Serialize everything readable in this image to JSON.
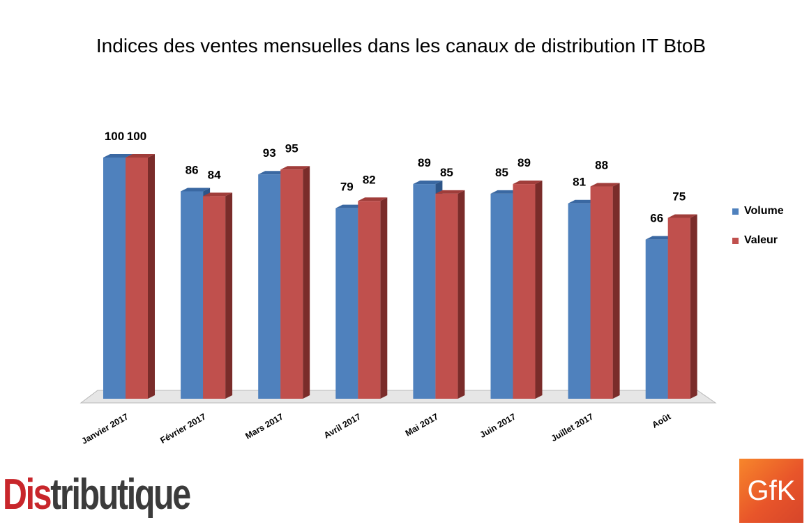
{
  "chart_data": {
    "type": "bar",
    "title": "Indices des ventes mensuelles dans les canaux de distribution IT BtoB",
    "categories": [
      "Janvier 2017",
      "Février 2017",
      "Mars 2017",
      "Avril 2017",
      "Mai 2017",
      "Juin 2017",
      "Juillet 2017",
      "Août"
    ],
    "series": [
      {
        "name": "Volume",
        "values": [
          100,
          86,
          93,
          79,
          89,
          85,
          81,
          66
        ],
        "color": "#4f81bd",
        "side_color": "#2d5588",
        "top_color": "#3a68a2"
      },
      {
        "name": "Valeur",
        "values": [
          100,
          84,
          95,
          82,
          85,
          89,
          88,
          75
        ],
        "color": "#c0504d",
        "side_color": "#7a2c2a",
        "top_color": "#a03d3a"
      }
    ],
    "ylim": [
      0,
      100
    ],
    "grid": false,
    "legend_position": "right",
    "xlabel": "",
    "ylabel": ""
  },
  "logos": {
    "distributique": {
      "part1": "Dis",
      "part2": "tributique"
    },
    "gfk": "GfK"
  }
}
